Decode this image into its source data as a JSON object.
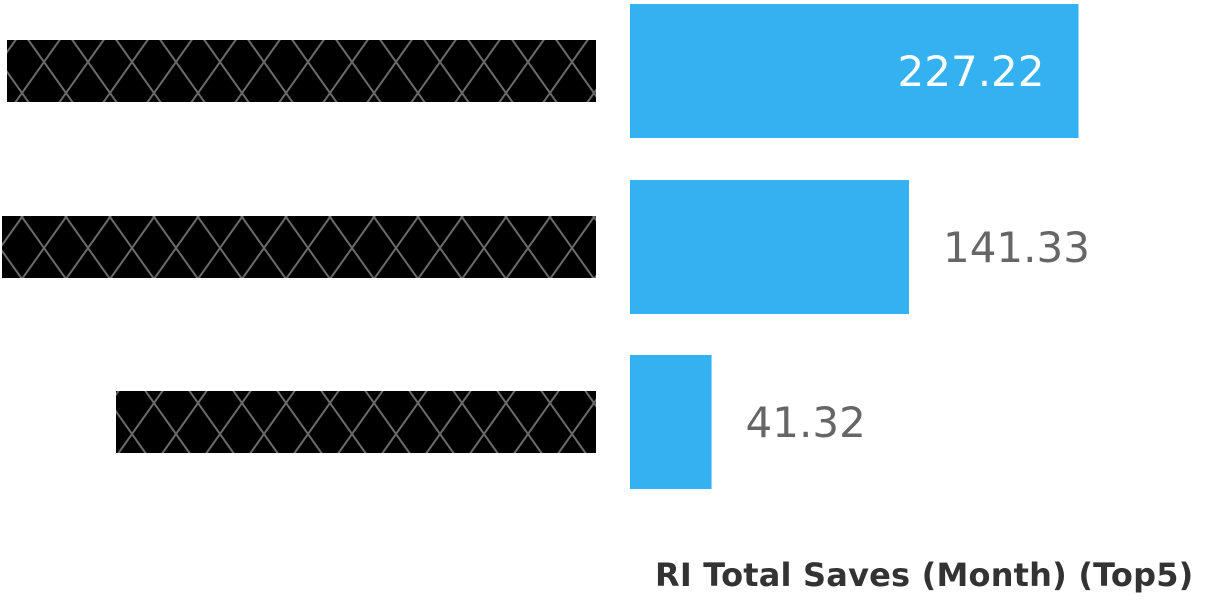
{
  "chart_data": {
    "type": "bar",
    "orientation": "horizontal",
    "categories": [
      "",
      "",
      ""
    ],
    "values": [
      227.22,
      141.33,
      41.32
    ],
    "value_labels": [
      "227.22",
      "141.33",
      "41.32"
    ],
    "xlabel": "RI Total Saves (Month) (Top5)",
    "ylabel": "",
    "xlim": [
      0,
      230
    ],
    "grid": false,
    "legend": "none",
    "category_labels_redacted": true
  },
  "colors": {
    "bar": "#33b1f1",
    "label_inside": "#ffffff",
    "label_outside": "#666666",
    "redaction": "#000000",
    "redaction_hatch": "#6a6a6a",
    "axis_title": "#333333"
  }
}
